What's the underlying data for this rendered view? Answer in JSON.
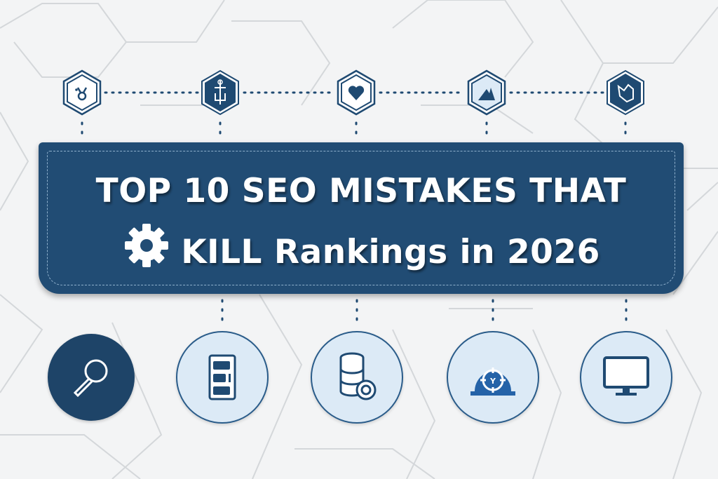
{
  "title": {
    "line1": "TOP 10 SEO MISTAKES THAT",
    "line2": "KILL Rankings in 2026"
  },
  "colors": {
    "navy": "#214c74",
    "dark_icon": "#1e4468",
    "light_fill": "#dceaf6",
    "background": "#f3f4f5"
  },
  "top_icons": [
    "bug-icon",
    "robot-icon",
    "heart-icon",
    "mountain-icon",
    "map-icon"
  ],
  "bottom_icons": [
    "magnifier-icon",
    "checklist-icon",
    "database-icon",
    "target-helmet-icon",
    "monitor-icon"
  ]
}
